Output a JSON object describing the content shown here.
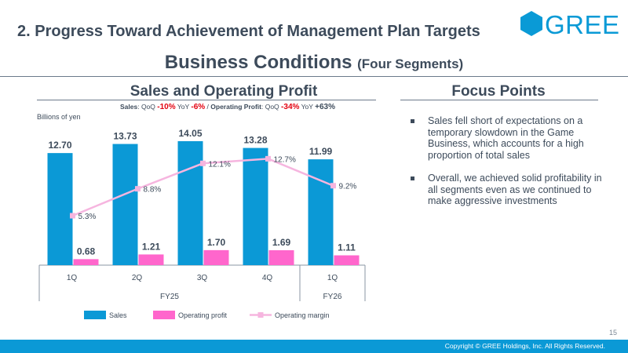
{
  "header": {
    "title": "2. Progress Toward Achievement of Management Plan Targets",
    "logo_text": "GREE"
  },
  "subtitle": {
    "main": "Business Conditions",
    "small": "(Four Segments)"
  },
  "left_section": {
    "heading": "Sales and Operating Profit",
    "growth": {
      "sales_label": "Sales",
      "qoq1": "QoQ",
      "sales_qoq": "-10%",
      "yoy1": "YoY",
      "sales_yoy": "-6%",
      "sep": "/",
      "op_label": "Operating Profit",
      "qoq2": "QoQ",
      "op_qoq": "-34%",
      "yoy2": "YoY",
      "op_yoy": "+63%"
    },
    "unit": "Billions of yen"
  },
  "right_section": {
    "heading": "Focus Points",
    "bullets": [
      "Sales fell short of expectations on a temporary slowdown in the Game Business, which accounts for a high proportion of total sales",
      "Overall, we achieved solid profitability in all segments even as we continued to make aggressive investments"
    ]
  },
  "chart_data": {
    "type": "bar",
    "categories": [
      "1Q",
      "2Q",
      "3Q",
      "4Q",
      "1Q"
    ],
    "groups": [
      {
        "label": "FY25",
        "span": 4
      },
      {
        "label": "FY26",
        "span": 1
      }
    ],
    "series": [
      {
        "name": "Sales",
        "type": "bar",
        "color": "#0b99d6",
        "values": [
          12.7,
          13.73,
          14.05,
          13.28,
          11.99
        ],
        "labels": [
          "12.70",
          "13.73",
          "14.05",
          "13.28",
          "11.99"
        ]
      },
      {
        "name": "Operating profit",
        "type": "bar",
        "color": "#ff66cc",
        "values": [
          0.68,
          1.21,
          1.7,
          1.69,
          1.11
        ],
        "labels": [
          "0.68",
          "1.21",
          "1.70",
          "1.69",
          "1.11"
        ]
      },
      {
        "name": "Operating margin",
        "type": "line",
        "color": "#f6b5df",
        "values": [
          5.3,
          8.8,
          12.1,
          12.7,
          9.2
        ],
        "labels": [
          "5.3%",
          "8.8%",
          "12.1%",
          "12.7%",
          "9.2%"
        ]
      }
    ],
    "ylim": [
      0,
      16
    ],
    "margin_ylim": [
      0,
      16
    ],
    "legend": "bottom",
    "grid": false
  },
  "footer": {
    "copyright": "Copyright © GREE Holdings, Inc. All Rights Reserved.",
    "page": "15"
  }
}
